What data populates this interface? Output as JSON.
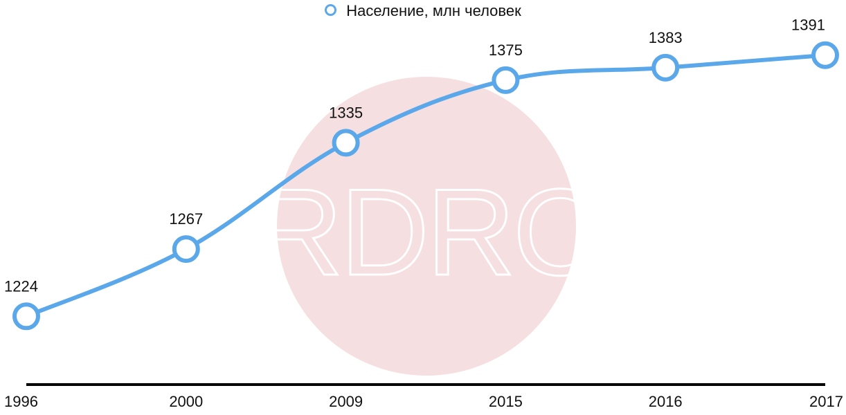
{
  "legend": {
    "series_label": "Население, млн человек"
  },
  "watermark": {
    "text": "RDRC"
  },
  "colors": {
    "series": "#5aa7ea",
    "axis": "#000000",
    "watermark_circle": "#f5dfe1",
    "text": "#111111"
  },
  "chart_data": {
    "type": "line",
    "x": [
      "1996",
      "2000",
      "2009",
      "2015",
      "2016",
      "2017"
    ],
    "series": [
      {
        "name": "Население, млн человек",
        "values": [
          1224,
          1267,
          1335,
          1375,
          1383,
          1391
        ]
      }
    ],
    "data_labels": [
      "1224",
      "1267",
      "1335",
      "1375",
      "1383",
      "1391"
    ],
    "ylim": [
      1183,
      1413
    ],
    "xlabel": "",
    "ylabel": "",
    "grid": false,
    "legend_position": "top-center",
    "marker": "hollow-circle",
    "smooth": true
  }
}
